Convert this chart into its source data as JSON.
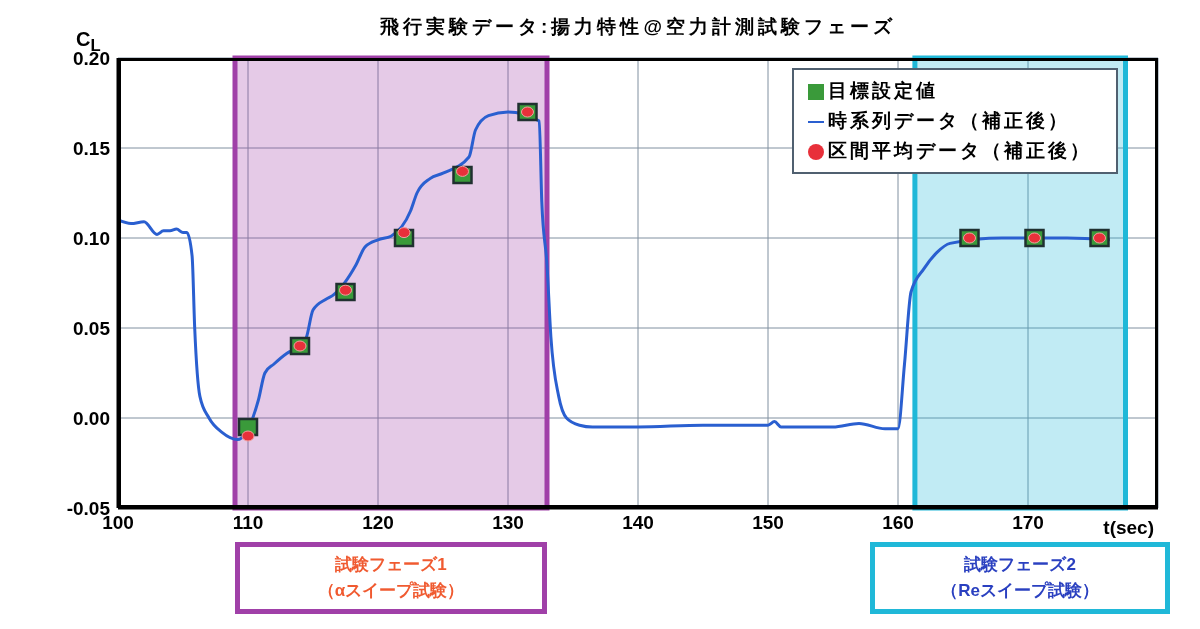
{
  "chart_data": {
    "type": "line",
    "title": "飛行実験データ:揚力特性@空力計測試験フェーズ",
    "xlabel": "t(sec)",
    "ylabel": "C$_{L}$",
    "xlim": [
      100,
      180
    ],
    "xticks": [
      100,
      110,
      120,
      130,
      140,
      150,
      160,
      170
    ],
    "ylim": [
      -0.05,
      0.2
    ],
    "yticks": [
      {
        "value": -0.05,
        "label": "-0.05"
      },
      {
        "value": 0,
        "label": "0.00"
      },
      {
        "value": 0.05,
        "label": "0.05"
      },
      {
        "value": 0.1,
        "label": "0.10"
      },
      {
        "value": 0.15,
        "label": "0.15"
      },
      {
        "value": 0.2,
        "label": "0.20"
      }
    ],
    "grid": true,
    "legend": "top right",
    "series": [
      {
        "name": "目標設定値",
        "type": "scatter",
        "marker": "square",
        "color": "#3a9a3a",
        "x": [
          110,
          114,
          117.5,
          122,
          126.5,
          131.5,
          165.5,
          170.5,
          175.5
        ],
        "values": [
          -0.005,
          0.04,
          0.07,
          0.1,
          0.135,
          0.17,
          0.1,
          0.1,
          0.1
        ]
      },
      {
        "name": "時系列データ（補正後）",
        "type": "line",
        "marker": "none",
        "color": "#2a5fd0",
        "x": [
          100,
          101,
          102,
          103,
          103.5,
          104,
          104.5,
          105,
          105.3,
          105.7,
          105.9,
          106.3,
          107,
          108,
          109.2,
          110.8,
          111.3,
          112,
          113,
          114,
          114.5,
          115,
          116,
          116.5,
          118.3,
          119,
          120,
          121,
          122.5,
          123,
          124,
          125,
          127,
          127.5,
          128.5,
          130,
          132.4,
          132.6,
          133,
          133.3,
          133.9,
          134.5,
          135.5,
          136.5,
          140,
          145,
          150,
          150.5,
          151,
          155,
          157,
          159,
          160,
          160.5,
          161,
          162,
          163,
          164,
          168,
          173,
          176.3
        ],
        "values": [
          0.11,
          0.108,
          0.109,
          0.102,
          0.104,
          0.104,
          0.105,
          0.103,
          0.103,
          0.09,
          0.05,
          0.012,
          0.0,
          -0.008,
          -0.012,
          0.01,
          0.025,
          0.03,
          0.036,
          0.04,
          0.045,
          0.06,
          0.066,
          0.068,
          0.085,
          0.095,
          0.099,
          0.101,
          0.115,
          0.125,
          0.133,
          0.136,
          0.145,
          0.16,
          0.168,
          0.17,
          0.165,
          0.12,
          0.085,
          0.045,
          0.012,
          0.0,
          -0.004,
          -0.005,
          -0.005,
          -0.004,
          -0.004,
          -0.002,
          -0.005,
          -0.005,
          -0.003,
          -0.006,
          -0.006,
          0.03,
          0.07,
          0.083,
          0.092,
          0.097,
          0.1,
          0.1,
          0.099
        ]
      },
      {
        "name": "区間平均データ（補正後）",
        "type": "scatter",
        "marker": "circle",
        "color": "#e8303a",
        "x": [
          110,
          114,
          117.5,
          122,
          126.5,
          131.5,
          165.5,
          170.5,
          175.5
        ],
        "values": [
          -0.01,
          0.04,
          0.071,
          0.103,
          0.137,
          0.17,
          0.1,
          0.1,
          0.1
        ]
      }
    ],
    "bands": [
      {
        "axis": "x",
        "from": 109,
        "to": 133,
        "label": "試験フェーズ1\n（αスイープ試験）",
        "color": "#a040a8"
      },
      {
        "axis": "x",
        "from": 161.3,
        "to": 177.5,
        "label": "試験フェーズ2\n（Reスイープ試験）",
        "color": "#20b8d8"
      }
    ]
  }
}
